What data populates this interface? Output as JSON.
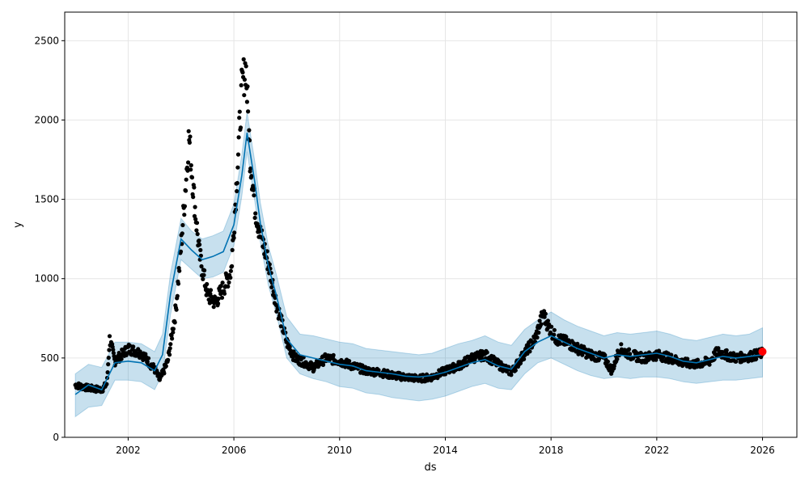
{
  "chart_data": {
    "type": "line",
    "title": "",
    "xlabel": "ds",
    "ylabel": "y",
    "xlim": [
      1999.6,
      2027.3
    ],
    "ylim": [
      0,
      2680
    ],
    "grid": true,
    "x_ticks": [
      2002,
      2006,
      2010,
      2014,
      2018,
      2022,
      2026
    ],
    "y_ticks": [
      0,
      500,
      1000,
      1500,
      2000,
      2500
    ],
    "colors": {
      "observed": "#000000",
      "forecast_line": "#0072B2",
      "uncertainty_band": "#0072B2",
      "highlight": "#FF0000",
      "grid": "#e6e6e6"
    },
    "forecast": {
      "x": [
        2000.0,
        2000.5,
        2001.0,
        2001.5,
        2002.0,
        2002.5,
        2003.0,
        2003.3,
        2003.6,
        2004.0,
        2004.4,
        2004.8,
        2005.2,
        2005.6,
        2006.0,
        2006.3,
        2006.5,
        2006.8,
        2007.0,
        2007.3,
        2007.6,
        2008.0,
        2008.5,
        2009.0,
        2009.5,
        2010.0,
        2010.5,
        2011.0,
        2011.5,
        2012.0,
        2012.5,
        2013.0,
        2013.5,
        2014.0,
        2014.5,
        2015.0,
        2015.5,
        2016.0,
        2016.5,
        2017.0,
        2017.5,
        2018.0,
        2018.5,
        2019.0,
        2019.5,
        2020.0,
        2020.5,
        2021.0,
        2021.5,
        2022.0,
        2022.5,
        2023.0,
        2023.5,
        2024.0,
        2024.5,
        2025.0,
        2025.5,
        2026.0
      ],
      "y": [
        270,
        330,
        300,
        470,
        480,
        470,
        420,
        520,
        900,
        1250,
        1180,
        1120,
        1140,
        1170,
        1340,
        1650,
        1920,
        1600,
        1350,
        1080,
        900,
        620,
        520,
        500,
        480,
        460,
        450,
        420,
        410,
        400,
        385,
        380,
        390,
        410,
        440,
        470,
        490,
        450,
        430,
        540,
        600,
        640,
        600,
        560,
        530,
        500,
        520,
        510,
        520,
        530,
        510,
        480,
        470,
        490,
        510,
        500,
        510,
        520
      ],
      "lower": [
        130,
        190,
        200,
        360,
        360,
        350,
        300,
        400,
        770,
        1120,
        1060,
        1000,
        1010,
        1040,
        1210,
        1520,
        1800,
        1480,
        1230,
        960,
        780,
        500,
        400,
        370,
        350,
        320,
        310,
        280,
        270,
        250,
        240,
        230,
        240,
        260,
        290,
        320,
        340,
        310,
        300,
        400,
        470,
        500,
        460,
        420,
        390,
        370,
        380,
        370,
        380,
        380,
        370,
        350,
        340,
        350,
        360,
        360,
        370,
        380
      ],
      "upper": [
        400,
        460,
        440,
        600,
        600,
        590,
        540,
        650,
        1030,
        1380,
        1300,
        1250,
        1270,
        1300,
        1470,
        1780,
        2050,
        1730,
        1480,
        1210,
        1030,
        760,
        650,
        640,
        620,
        600,
        590,
        560,
        550,
        540,
        530,
        520,
        530,
        560,
        590,
        610,
        640,
        600,
        580,
        680,
        740,
        790,
        740,
        700,
        670,
        640,
        660,
        650,
        660,
        670,
        650,
        620,
        610,
        630,
        650,
        640,
        650,
        690
      ]
    },
    "observed_anchors": {
      "x": [
        2000.0,
        2000.5,
        2001.0,
        2001.2,
        2001.3,
        2001.5,
        2002.0,
        2002.5,
        2003.0,
        2003.2,
        2003.5,
        2003.8,
        2004.0,
        2004.2,
        2004.3,
        2004.5,
        2004.7,
        2005.0,
        2005.3,
        2005.6,
        2005.9,
        2006.1,
        2006.3,
        2006.45,
        2006.6,
        2006.8,
        2007.0,
        2007.3,
        2007.6,
        2008.0,
        2008.3,
        2008.7,
        2009.0,
        2009.5,
        2010.0,
        2010.5,
        2011.0,
        2011.5,
        2012.0,
        2012.5,
        2013.0,
        2013.5,
        2014.0,
        2014.5,
        2015.0,
        2015.5,
        2016.0,
        2016.5,
        2017.0,
        2017.4,
        2017.7,
        2017.9,
        2018.2,
        2018.6,
        2019.0,
        2019.5,
        2020.0,
        2020.3,
        2020.6,
        2021.0,
        2021.5,
        2022.0,
        2022.5,
        2023.0,
        2023.5,
        2024.0,
        2024.3,
        2024.6,
        2025.0,
        2025.5,
        2026.0
      ],
      "y": [
        330,
        310,
        300,
        340,
        620,
        480,
        560,
        530,
        430,
        360,
        480,
        800,
        1200,
        1650,
        1900,
        1500,
        1150,
        900,
        850,
        940,
        1050,
        1600,
        2200,
        2350,
        1800,
        1450,
        1280,
        1100,
        850,
        600,
        500,
        470,
        440,
        500,
        480,
        450,
        420,
        410,
        390,
        380,
        370,
        380,
        420,
        450,
        500,
        520,
        460,
        410,
        530,
        620,
        780,
        700,
        620,
        600,
        560,
        520,
        500,
        420,
        560,
        520,
        500,
        520,
        500,
        470,
        460,
        480,
        540,
        520,
        500,
        510,
        530
      ]
    },
    "highlight_point": {
      "x": 2026.0,
      "y": 540
    }
  }
}
